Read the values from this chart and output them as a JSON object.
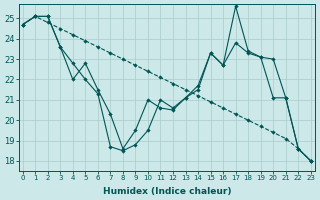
{
  "xlabel": "Humidex (Indice chaleur)",
  "bg_color": "#cce8e8",
  "grid_color": "#aacccc",
  "line_color": "#005555",
  "xlim": [
    -0.3,
    23.3
  ],
  "ylim": [
    17.5,
    25.7
  ],
  "yticks": [
    18,
    19,
    20,
    21,
    22,
    23,
    24,
    25
  ],
  "xticks": [
    0,
    1,
    2,
    3,
    4,
    5,
    6,
    7,
    8,
    9,
    10,
    11,
    12,
    13,
    14,
    15,
    16,
    17,
    18,
    19,
    20,
    21,
    22,
    23
  ],
  "line_dashed": [
    24.7,
    25.1,
    24.8,
    24.5,
    24.2,
    23.9,
    23.6,
    23.3,
    23.0,
    22.7,
    22.4,
    22.1,
    21.8,
    21.5,
    21.2,
    20.9,
    20.6,
    20.3,
    20.0,
    19.7,
    19.4,
    19.1,
    18.6,
    18.0
  ],
  "line_zigzag1": [
    24.7,
    25.1,
    25.1,
    23.6,
    22.8,
    22.0,
    21.3,
    18.7,
    18.5,
    18.8,
    19.5,
    21.0,
    20.6,
    21.1,
    21.7,
    23.3,
    22.7,
    25.6,
    23.4,
    23.1,
    23.0,
    21.1,
    18.6,
    18.0
  ],
  "line_zigzag2": [
    24.7,
    25.1,
    25.1,
    23.6,
    22.0,
    22.8,
    21.5,
    20.3,
    18.6,
    19.5,
    21.0,
    20.6,
    20.5,
    21.1,
    21.5,
    23.3,
    22.7,
    23.8,
    23.3,
    23.1,
    21.1,
    21.1,
    18.6,
    18.0
  ]
}
